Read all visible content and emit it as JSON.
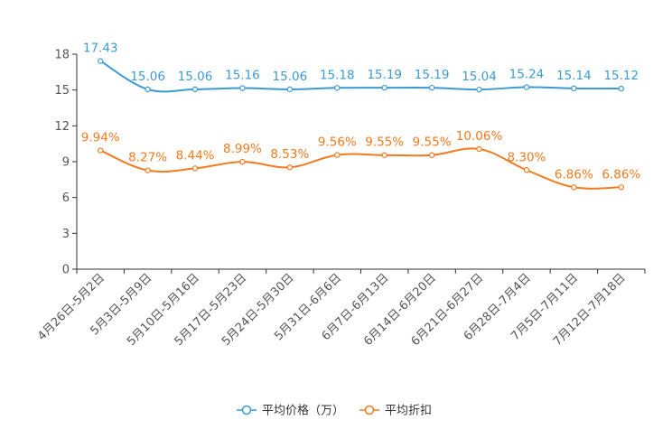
{
  "chart_data": {
    "type": "line",
    "title": "",
    "xlabel": "",
    "ylabel": "",
    "ylim": [
      0,
      18
    ],
    "yticks": [
      0,
      3,
      6,
      9,
      12,
      15,
      18
    ],
    "grid": false,
    "legend_position": "bottom-center",
    "categories": [
      "4月26日-5月2日",
      "5月3日-5月9日",
      "5月10日-5月16日",
      "5月17日-5月23日",
      "5月24日-5月30日",
      "5月31日-6月6日",
      "6月7日-6月13日",
      "6月14日-6月20日",
      "6月21日-6月27日",
      "6月28日-7月4日",
      "7月5日-7月11日",
      "7月12日-7月18日"
    ],
    "series": [
      {
        "name": "平均价格（万）",
        "color": "#3d9bd1",
        "values": [
          17.43,
          15.06,
          15.06,
          15.16,
          15.06,
          15.18,
          15.19,
          15.19,
          15.04,
          15.24,
          15.14,
          15.12
        ],
        "labels": [
          "17.43",
          "15.06",
          "15.06",
          "15.16",
          "15.06",
          "15.18",
          "15.19",
          "15.19",
          "15.04",
          "15.24",
          "15.14",
          "15.12"
        ]
      },
      {
        "name": "平均折扣",
        "color": "#f47a20",
        "values": [
          9.94,
          8.27,
          8.44,
          8.99,
          8.53,
          9.56,
          9.55,
          9.55,
          10.06,
          8.3,
          6.86,
          6.86
        ],
        "labels": [
          "9.94%",
          "8.27%",
          "8.44%",
          "8.99%",
          "8.53%",
          "9.56%",
          "9.55%",
          "9.55%",
          "10.06%",
          "8.30%",
          "6.86%",
          "6.86%"
        ]
      }
    ]
  }
}
